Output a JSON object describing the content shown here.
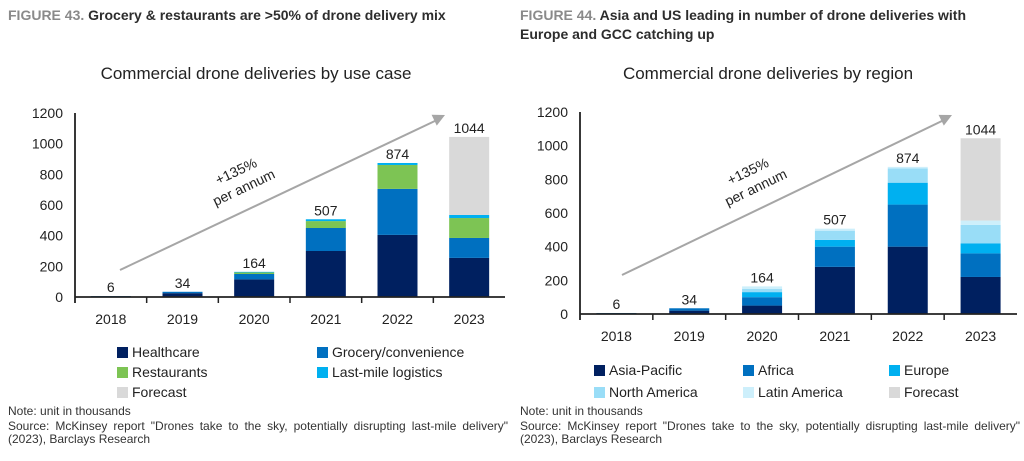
{
  "left": {
    "figure_number": "FIGURE 43.",
    "figure_title": "Grocery & restaurants are >50% of drone delivery mix",
    "note": "Note:  unit in thousands",
    "source": "Source: McKinsey report \"Drones take to the sky, potentially disrupting last-mile delivery\" (2023), Barclays Research"
  },
  "right": {
    "figure_number": "FIGURE 44.",
    "figure_title": "Asia and US leading in number of drone deliveries with Europe and GCC catching up",
    "note": "Note: unit in thousands",
    "source": "Source: McKinsey report \"Drones take to the sky, potentially disrupting last-mile delivery\" (2023), Barclays Research"
  },
  "chart_data": [
    {
      "type": "bar",
      "stacked": true,
      "title": "Commercial drone deliveries by use case",
      "xlabel": "",
      "ylabel": "",
      "ylim": [
        0,
        1200
      ],
      "yticks": [
        0,
        200,
        400,
        600,
        800,
        1000,
        1200
      ],
      "categories": [
        "2018",
        "2019",
        "2020",
        "2021",
        "2022",
        "2023"
      ],
      "totals": [
        6,
        34,
        164,
        507,
        874,
        1044
      ],
      "series": [
        {
          "name": "Healthcare",
          "color": "#002060",
          "values": [
            4,
            25,
            115,
            300,
            405,
            255
          ]
        },
        {
          "name": "Grocery/convenience",
          "color": "#0070C0",
          "values": [
            2,
            9,
            35,
            150,
            300,
            130
          ]
        },
        {
          "name": "Restaurants",
          "color": "#7DC454",
          "values": [
            0,
            0,
            10,
            45,
            156,
            130
          ]
        },
        {
          "name": "Last-mile logistics",
          "color": "#00B0F0",
          "values": [
            0,
            0,
            4,
            12,
            13,
            20
          ]
        },
        {
          "name": "Forecast",
          "color": "#D9D9D9",
          "values": [
            0,
            0,
            0,
            0,
            0,
            509
          ]
        }
      ],
      "annotation": {
        "line1": "+135%",
        "line2": "per annum"
      },
      "legend_position": "bottom"
    },
    {
      "type": "bar",
      "stacked": true,
      "title": "Commercial drone deliveries by region",
      "xlabel": "",
      "ylabel": "",
      "ylim": [
        0,
        1200
      ],
      "yticks": [
        0,
        200,
        400,
        600,
        800,
        1000,
        1200
      ],
      "categories": [
        "2018",
        "2019",
        "2020",
        "2021",
        "2022",
        "2023"
      ],
      "totals": [
        6,
        34,
        164,
        507,
        874,
        1044
      ],
      "series": [
        {
          "name": "Asia-Pacific",
          "color": "#002060",
          "values": [
            3,
            20,
            50,
            280,
            400,
            220
          ]
        },
        {
          "name": "Africa",
          "color": "#0070C0",
          "values": [
            3,
            14,
            50,
            120,
            250,
            140
          ]
        },
        {
          "name": "Europe",
          "color": "#00B0F0",
          "values": [
            0,
            0,
            30,
            40,
            130,
            60
          ]
        },
        {
          "name": "North America",
          "color": "#99DDF7",
          "values": [
            0,
            0,
            20,
            55,
            85,
            110
          ]
        },
        {
          "name": "Latin America",
          "color": "#CDEFFB",
          "values": [
            0,
            0,
            14,
            12,
            9,
            25
          ]
        },
        {
          "name": "Forecast",
          "color": "#D9D9D9",
          "values": [
            0,
            0,
            0,
            0,
            0,
            489
          ]
        }
      ],
      "annotation": {
        "line1": "+135%",
        "line2": "per annum"
      },
      "legend_position": "bottom"
    }
  ]
}
